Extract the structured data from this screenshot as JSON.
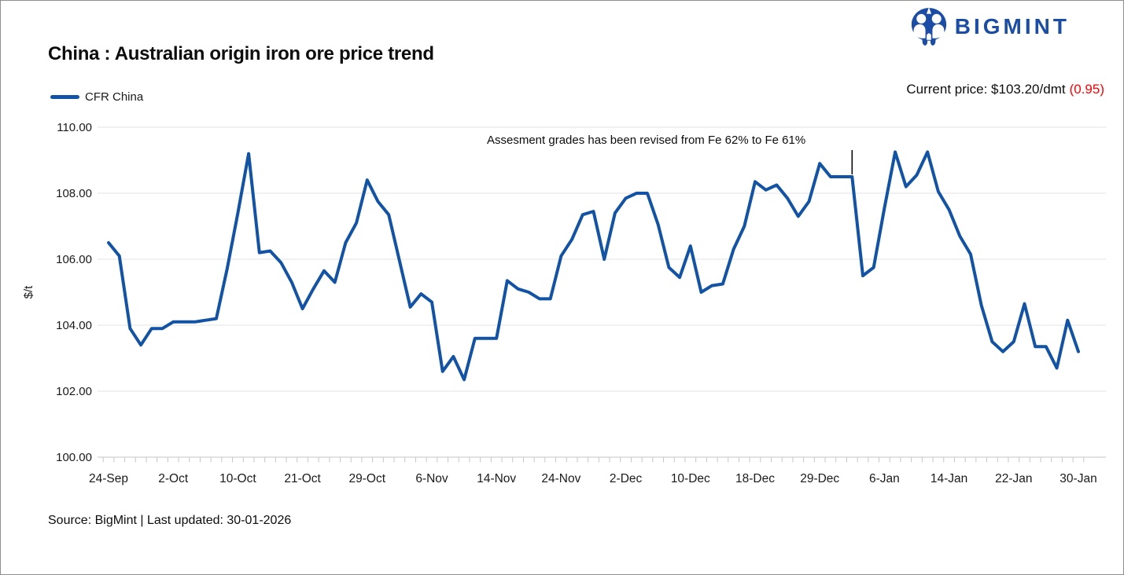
{
  "header": {
    "logo_text": "BIGMINT",
    "title": "China : Australian origin iron ore price trend",
    "current_price_label": "Current price: $103.20/dmt",
    "current_price_change": "(0.95)"
  },
  "legend": {
    "label": "CFR China"
  },
  "annotation": {
    "text": "Assesment grades has been revised from Fe 62% to Fe 61%",
    "point_index": 69
  },
  "footer": {
    "source": "Source: BigMint | Last updated: 30-01-2026"
  },
  "colors": {
    "line": "#1253a5",
    "logo_blue": "#1b4da6",
    "change_red": "#ff0000",
    "grid": "#e3e3e3",
    "axis": "#c6c6c6",
    "text": "#1a1a1a"
  },
  "chart_data": {
    "type": "line",
    "title": "China : Australian origin iron ore price trend",
    "xlabel": "",
    "ylabel": "$/t",
    "ylim": [
      100,
      110
    ],
    "ytick_step": 2,
    "grid": true,
    "legend_position": "top-left",
    "y_tick_labels": [
      "100.00",
      "102.00",
      "104.00",
      "106.00",
      "108.00",
      "110.00"
    ],
    "x_tick_labels": [
      "24-Sep",
      "2-Oct",
      "10-Oct",
      "21-Oct",
      "29-Oct",
      "6-Nov",
      "14-Nov",
      "24-Nov",
      "2-Dec",
      "10-Dec",
      "18-Dec",
      "29-Dec",
      "6-Jan",
      "14-Jan",
      "22-Jan",
      "30-Jan"
    ],
    "points_per_label_interval": 6,
    "series": [
      {
        "name": "CFR China",
        "values": [
          106.5,
          106.1,
          103.9,
          103.4,
          103.9,
          103.9,
          104.1,
          104.1,
          104.1,
          104.15,
          104.2,
          105.7,
          107.4,
          109.2,
          106.2,
          106.25,
          105.9,
          105.3,
          104.5,
          105.1,
          105.65,
          105.3,
          106.5,
          107.1,
          108.4,
          107.75,
          107.35,
          105.95,
          104.55,
          104.95,
          104.7,
          102.6,
          103.05,
          102.35,
          103.6,
          103.6,
          103.6,
          105.35,
          105.1,
          105.0,
          104.8,
          104.8,
          106.1,
          106.6,
          107.35,
          107.45,
          106.0,
          107.4,
          107.85,
          108.0,
          108.0,
          107.05,
          105.75,
          105.45,
          106.4,
          105.0,
          105.2,
          105.25,
          106.3,
          107.0,
          108.35,
          108.1,
          108.25,
          107.85,
          107.3,
          107.75,
          108.9,
          108.5,
          108.5,
          108.5,
          105.5,
          105.75,
          107.55,
          109.25,
          108.2,
          108.55,
          109.25,
          108.05,
          107.5,
          106.7,
          106.15,
          104.6,
          103.5,
          103.2,
          103.5,
          104.65,
          103.35,
          103.35,
          102.7,
          104.15,
          103.2
        ]
      }
    ]
  }
}
